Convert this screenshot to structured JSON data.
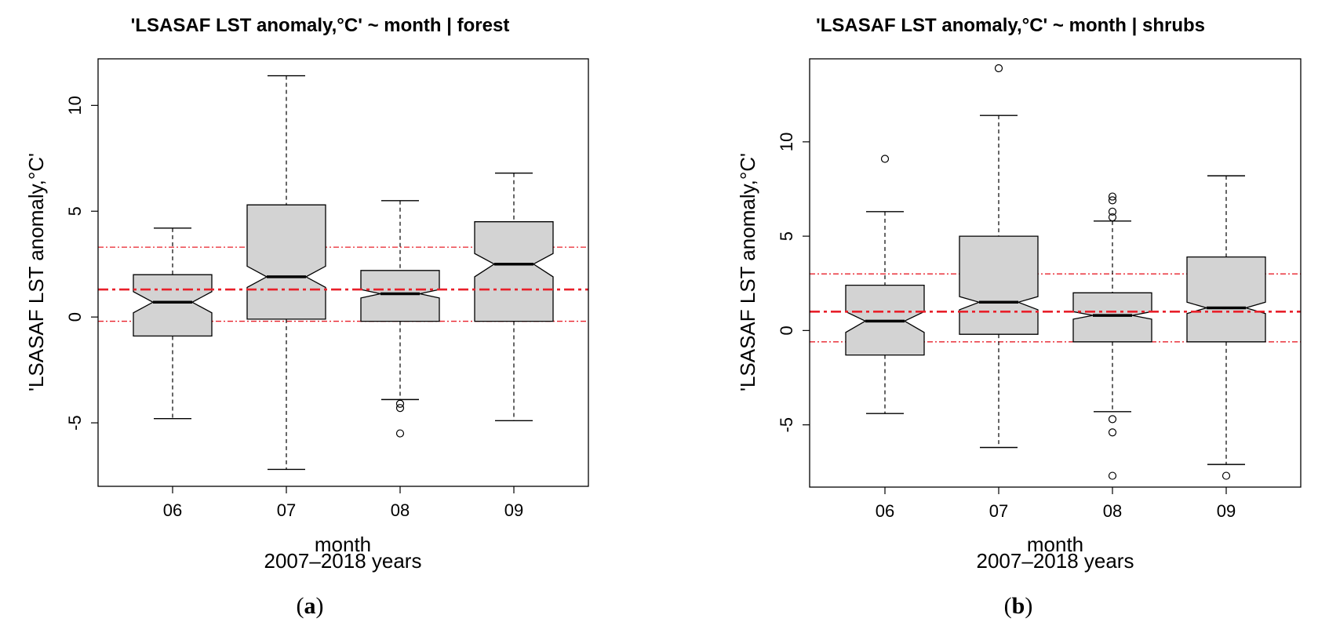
{
  "colors": {
    "box_fill": "#d3d3d3",
    "box_stroke": "#000000",
    "reference_line": "#e8202a",
    "outlier_stroke": "#000000"
  },
  "chart_data": [
    {
      "type": "boxplot",
      "notched": true,
      "panel_label": "a",
      "title": "'LSASAF LST anomaly,°C' ~ month | forest",
      "xlabel": "month",
      "xlabel_sub": "2007–2018 years",
      "ylabel": "'LSASAF LST anomaly,°C'",
      "ylim": [
        -8,
        12.2
      ],
      "yticks": [
        -5,
        0,
        5,
        10
      ],
      "ytick_labels": [
        "-5",
        "0",
        "5",
        "10"
      ],
      "categories": [
        "06",
        "07",
        "08",
        "09"
      ],
      "boxes": [
        {
          "month": "06",
          "whisker_low": -4.8,
          "q1": -0.9,
          "median": 0.7,
          "q3": 2.0,
          "whisker_high": 4.2,
          "notch_low": 0.2,
          "notch_high": 1.2,
          "outliers": []
        },
        {
          "month": "07",
          "whisker_low": -7.2,
          "q1": -0.1,
          "median": 1.9,
          "q3": 5.3,
          "whisker_high": 11.4,
          "notch_low": 1.4,
          "notch_high": 2.4,
          "outliers": []
        },
        {
          "month": "08",
          "whisker_low": -3.9,
          "q1": -0.2,
          "median": 1.1,
          "q3": 2.2,
          "whisker_high": 5.5,
          "notch_low": 0.9,
          "notch_high": 1.3,
          "outliers": [
            -4.1,
            -4.3,
            -5.5
          ]
        },
        {
          "month": "09",
          "whisker_low": -4.9,
          "q1": -0.2,
          "median": 2.5,
          "q3": 4.5,
          "whisker_high": 6.8,
          "notch_low": 1.9,
          "notch_high": 3.0,
          "outliers": []
        }
      ],
      "reference_lines": {
        "mean": 1.3,
        "upper": 3.3,
        "lower": -0.2
      }
    },
    {
      "type": "boxplot",
      "notched": true,
      "panel_label": "b",
      "title": "'LSASAF LST anomaly,°C' ~ month | shrubs",
      "xlabel": "month",
      "xlabel_sub": "2007–2018 years",
      "ylabel": "'LSASAF LST anomaly,°C'",
      "ylim": [
        -8.3,
        14.4
      ],
      "yticks": [
        -5,
        0,
        5,
        10
      ],
      "ytick_labels": [
        "-5",
        "0",
        "5",
        "10"
      ],
      "categories": [
        "06",
        "07",
        "08",
        "09"
      ],
      "boxes": [
        {
          "month": "06",
          "whisker_low": -4.4,
          "q1": -1.3,
          "median": 0.5,
          "q3": 2.4,
          "whisker_high": 6.3,
          "notch_low": -0.1,
          "notch_high": 1.0,
          "outliers": [
            9.1
          ]
        },
        {
          "month": "07",
          "whisker_low": -6.2,
          "q1": -0.2,
          "median": 1.5,
          "q3": 5.0,
          "whisker_high": 11.4,
          "notch_low": 1.1,
          "notch_high": 1.8,
          "outliers": [
            13.9
          ]
        },
        {
          "month": "08",
          "whisker_low": -4.3,
          "q1": -0.6,
          "median": 0.8,
          "q3": 2.0,
          "whisker_high": 5.8,
          "notch_low": 0.6,
          "notch_high": 1.0,
          "outliers": [
            6.0,
            6.3,
            6.9,
            7.1,
            -4.7,
            -5.4,
            -7.7
          ]
        },
        {
          "month": "09",
          "whisker_low": -7.1,
          "q1": -0.6,
          "median": 1.2,
          "q3": 3.9,
          "whisker_high": 8.2,
          "notch_low": 0.9,
          "notch_high": 1.5,
          "outliers": [
            -7.7
          ]
        }
      ],
      "reference_lines": {
        "mean": 1.0,
        "upper": 3.0,
        "lower": -0.6
      }
    }
  ]
}
